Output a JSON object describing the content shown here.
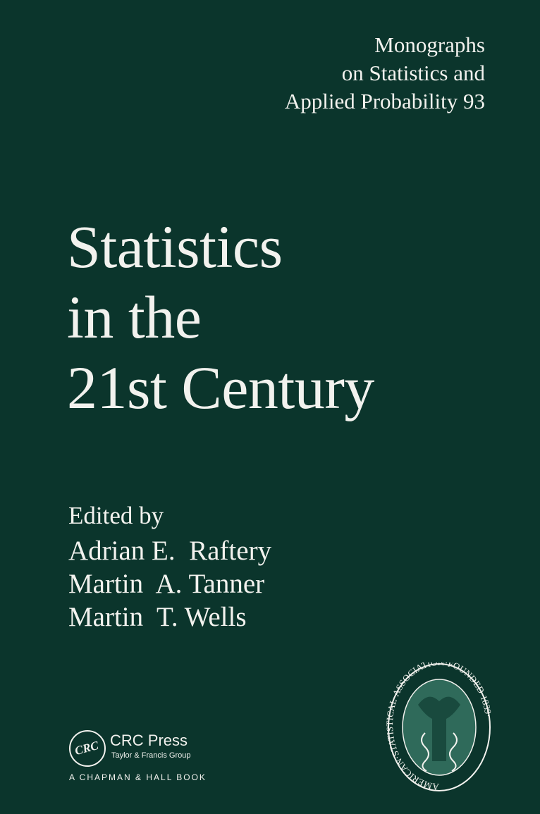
{
  "series": {
    "lines": [
      "Monographs",
      "on Statistics and",
      "Applied Probability 93"
    ]
  },
  "title": {
    "lines": [
      "Statistics",
      "in the",
      "21st Century"
    ]
  },
  "edited_by": "Edited by",
  "editors": [
    "Adrian E.  Raftery",
    "Martin  A. Tanner",
    "Martin  T. Wells"
  ],
  "publisher": {
    "logo_text": "CRC",
    "name": "CRC Press",
    "group": "Taylor & Francis Group",
    "imprint": "A CHAPMAN & HALL BOOK"
  },
  "seal": {
    "text": "AMERICAN·STATISTICAL·ASSOCIATION·FOUNDED·1839·"
  },
  "colors": {
    "background": "#0b352c",
    "text": "#f2f2ee",
    "seal_fill": "#2f6a5a"
  }
}
